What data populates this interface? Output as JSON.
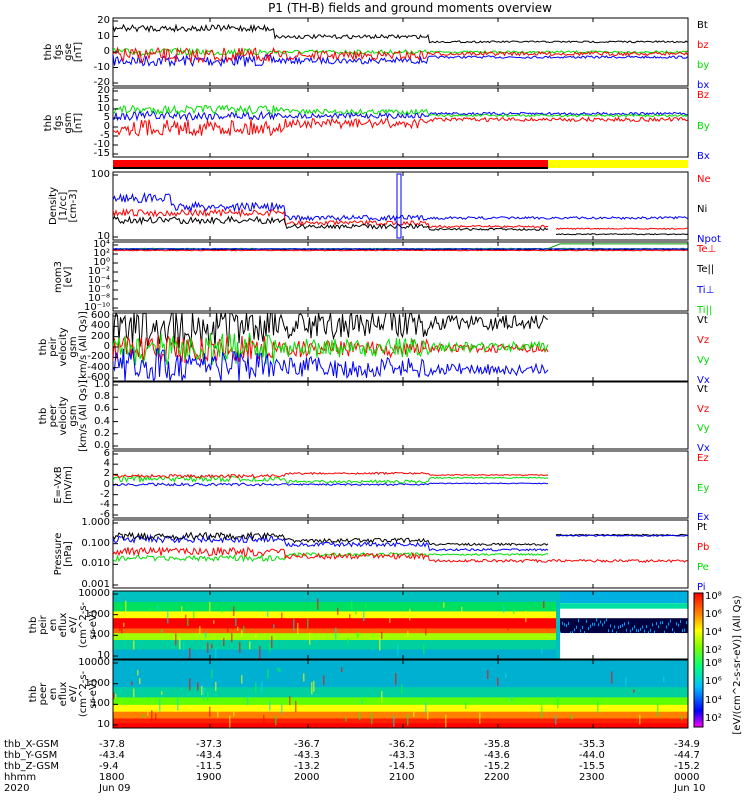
{
  "title": "P1 (TH-B) fields and ground moments overview",
  "colors": {
    "black": "#000000",
    "red": "#ff0000",
    "green": "#00e000",
    "blue": "#0000ff",
    "yellow": "#ffff00"
  },
  "chart_data": [
    {
      "type": "line",
      "panel": "fgs_gse",
      "ylabel": [
        "thb",
        "fgs",
        "gse",
        "[nT]"
      ],
      "ylim": [
        -20,
        20
      ],
      "yticks": [
        "20",
        "10",
        "0",
        "-10",
        "-20"
      ],
      "series": [
        {
          "name": "Bt",
          "color": "#000000"
        },
        {
          "name": "bz",
          "color": "#ff0000"
        },
        {
          "name": "by",
          "color": "#00e000"
        },
        {
          "name": "bx",
          "color": "#0000ff"
        }
      ]
    },
    {
      "type": "line",
      "panel": "fgs_gsm",
      "ylabel": [
        "thb",
        "fgs",
        "gsm",
        "[nT]"
      ],
      "ylim": [
        -15,
        20
      ],
      "yticks": [
        "20",
        "15",
        "10",
        "5",
        "0",
        "-5",
        "-10",
        "-15"
      ],
      "series": [
        {
          "name": "Bz",
          "color": "#ff0000"
        },
        {
          "name": "By",
          "color": "#00e000"
        },
        {
          "name": "Bx",
          "color": "#0000ff"
        }
      ]
    },
    {
      "type": "line",
      "panel": "density",
      "ylabel": [
        "Density",
        "[1/cc]",
        "[cm-3]"
      ],
      "scale": "log",
      "yticks": [
        "100",
        "10"
      ],
      "series": [
        {
          "name": "Ne",
          "color": "#ff0000"
        },
        {
          "name": "Ni",
          "color": "#000000"
        },
        {
          "name": "Npot",
          "color": "#0000ff"
        }
      ]
    },
    {
      "type": "line",
      "panel": "temperature",
      "ylabel": [
        "mom3",
        "[eV]"
      ],
      "scale": "log",
      "yticks": [
        "10⁴",
        "10²",
        "10⁰",
        "10⁻²",
        "10⁻⁴",
        "10⁻⁶",
        "10⁻⁸",
        "10⁻¹⁰"
      ],
      "series": [
        {
          "name": "Te⊥",
          "color": "#ff0000"
        },
        {
          "name": "Te||",
          "color": "#000000"
        },
        {
          "name": "Ti⊥",
          "color": "#0000ff"
        },
        {
          "name": "Ti||",
          "color": "#00e000"
        }
      ]
    },
    {
      "type": "line",
      "panel": "peir_velocity",
      "ylabel": [
        "thb",
        "peir",
        "velocity",
        "gsm",
        "[km/s (All Qs)]"
      ],
      "ylim": [
        -600,
        600
      ],
      "yticks": [
        "600",
        "400",
        "200",
        "0",
        "-200",
        "-400",
        "-600"
      ],
      "series": [
        {
          "name": "Vt",
          "color": "#000000"
        },
        {
          "name": "Vz",
          "color": "#ff0000"
        },
        {
          "name": "Vy",
          "color": "#00e000"
        },
        {
          "name": "Vx",
          "color": "#0000ff"
        }
      ]
    },
    {
      "type": "line",
      "panel": "peer_velocity",
      "ylabel": [
        "thb",
        "peer",
        "velocity",
        "gsm",
        "[km/s (All Qs)]"
      ],
      "ylim": [
        0,
        1
      ],
      "yticks": [
        "1.0",
        "0.8",
        "0.6",
        "0.4",
        "0.2",
        "0.0"
      ],
      "series": [
        {
          "name": "Vt",
          "color": "#000000"
        },
        {
          "name": "Vz",
          "color": "#ff0000"
        },
        {
          "name": "Vy",
          "color": "#00e000"
        },
        {
          "name": "Vx",
          "color": "#0000ff"
        }
      ]
    },
    {
      "type": "line",
      "panel": "efield",
      "ylabel": [
        "E=-VxB",
        "[mV/m]"
      ],
      "ylim": [
        -6,
        6
      ],
      "yticks": [
        "6",
        "4",
        "2",
        "0",
        "-2",
        "-4",
        "-6"
      ],
      "series": [
        {
          "name": "Ez",
          "color": "#ff0000"
        },
        {
          "name": "Ey",
          "color": "#00e000"
        },
        {
          "name": "Ex",
          "color": "#0000ff"
        }
      ]
    },
    {
      "type": "line",
      "panel": "pressure",
      "ylabel": [
        "Pressure",
        "[nPa]"
      ],
      "scale": "log",
      "yticks": [
        "1.000",
        "0.100",
        "0.010",
        "0.001"
      ],
      "series": [
        {
          "name": "Pt",
          "color": "#000000"
        },
        {
          "name": "Pb",
          "color": "#ff0000"
        },
        {
          "name": "Pe",
          "color": "#00e000"
        },
        {
          "name": "Pi",
          "color": "#0000ff"
        }
      ]
    },
    {
      "type": "heatmap",
      "panel": "peir_eflux",
      "ylabel": [
        "thb",
        "peir",
        "en",
        "eflux",
        "eV/",
        "(cm^2-s-",
        "sr-eV)"
      ],
      "scale": "log",
      "yticks": [
        "10000",
        "1000",
        "100",
        "10"
      ]
    },
    {
      "type": "heatmap",
      "panel": "peer_eflux",
      "ylabel": [
        "thb",
        "peer",
        "en",
        "eflux",
        "eV/",
        "(cm^2-s-",
        "sr-eV)"
      ],
      "scale": "log",
      "yticks": [
        "10000",
        "1000",
        "100",
        "10"
      ]
    }
  ],
  "colorbar": {
    "ticks": [
      "10⁸",
      "10⁶",
      "10⁴",
      "10²"
    ],
    "label": "[eV/(cm^2-s-sr-eV)] (All Qs)"
  },
  "x_axis": {
    "row_labels": [
      "thb_X-GSM",
      "thb_Y-GSM",
      "thb_Z-GSM",
      "hhmm",
      "2020"
    ],
    "columns": [
      {
        "x": "-37.8",
        "y": "-43.4",
        "z": "-9.4",
        "hhmm": "1800",
        "date": "Jun 09"
      },
      {
        "x": "-37.3",
        "y": "-43.4",
        "z": "-11.5",
        "hhmm": "1900",
        "date": ""
      },
      {
        "x": "-36.7",
        "y": "-43.3",
        "z": "-13.2",
        "hhmm": "2000",
        "date": ""
      },
      {
        "x": "-36.2",
        "y": "-43.3",
        "z": "-14.5",
        "hhmm": "2100",
        "date": ""
      },
      {
        "x": "-35.8",
        "y": "-43.6",
        "z": "-15.2",
        "hhmm": "2200",
        "date": ""
      },
      {
        "x": "-35.3",
        "y": "-44.0",
        "z": "-15.5",
        "hhmm": "2300",
        "date": ""
      },
      {
        "x": "-34.9",
        "y": "-44.7",
        "z": "-15.2",
        "hhmm": "0000",
        "date": "Jun 10"
      }
    ]
  }
}
